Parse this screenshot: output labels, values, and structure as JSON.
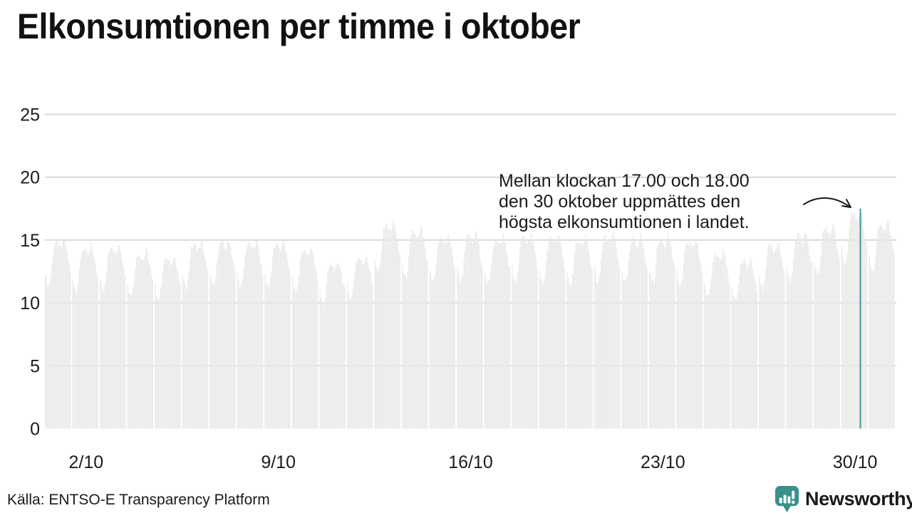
{
  "title": "Elkonsumtionen per timme i oktober",
  "source": {
    "text": "Källa: ENTSO-E Transparency Platform"
  },
  "brand": {
    "name": "Newsworthy",
    "color": "#38928B"
  },
  "annotation": {
    "lines": [
      "Mellan klockan 17.00 och 18.00",
      "den 30 oktober uppmättes den",
      "högsta elkonsumtionen i landet."
    ]
  },
  "icons": {
    "logo": "bar-chart-speech-bubble-icon",
    "annotation_arrow": "curved-arrow-icon"
  },
  "colors": {
    "bar": "#e9e9e9",
    "grid": "#d9d9d9",
    "highlight": "#55a8a1",
    "text": "#1a1a1a",
    "brand": "#38928B"
  },
  "chart_data": {
    "type": "bar",
    "title": "Elkonsumtionen per timme i oktober",
    "xlabel": "",
    "ylabel": "",
    "ylim": [
      0,
      25
    ],
    "grid": true,
    "legend": "none",
    "y_ticks": [
      0,
      5,
      10,
      15,
      20,
      25
    ],
    "x_tick_labels": [
      {
        "label": "2/10",
        "day": 2
      },
      {
        "label": "9/10",
        "day": 9
      },
      {
        "label": "16/10",
        "day": 16
      },
      {
        "label": "23/10",
        "day": 23
      },
      {
        "label": "30/10",
        "day": 30
      }
    ],
    "days_in_month": 31,
    "hours_per_day": 24,
    "hour_profile": [
      0.82,
      0.78,
      0.76,
      0.75,
      0.76,
      0.79,
      0.85,
      0.91,
      0.95,
      0.97,
      0.98,
      0.975,
      0.965,
      0.955,
      0.945,
      0.95,
      0.97,
      1.0,
      0.985,
      0.955,
      0.92,
      0.885,
      0.855,
      0.825
    ],
    "day_peak_values": [
      15.2,
      14.6,
      14.8,
      14.2,
      13.8,
      15.0,
      15.1,
      15.1,
      15.0,
      14.5,
      13.3,
      13.9,
      16.6,
      16.0,
      15.5,
      15.7,
      15.4,
      15.6,
      15.5,
      15.3,
      15.6,
      15.4,
      15.5,
      15.2,
      14.1,
      13.6,
      14.9,
      15.7,
      16.3,
      17.5,
      16.6
    ],
    "jitter_amplitude": 0.5,
    "highlight": {
      "day": 30,
      "hour_index": 17,
      "hour_label": "17.00–18.00",
      "value": 17.5
    }
  }
}
